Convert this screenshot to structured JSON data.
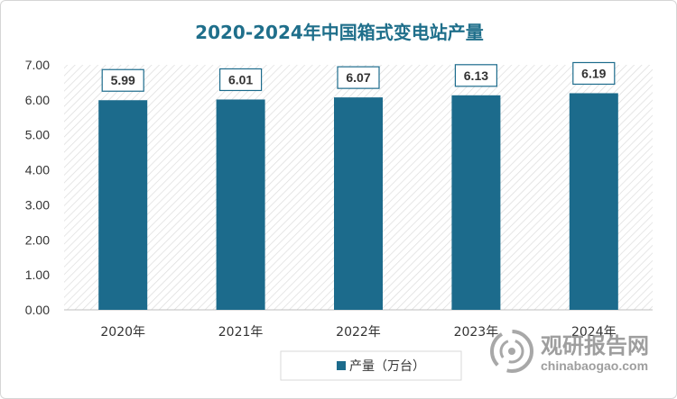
{
  "chart_data": {
    "type": "bar",
    "title": "2020-2024年中国箱式变电站产量",
    "categories": [
      "2020年",
      "2021年",
      "2022年",
      "2023年",
      "2024年"
    ],
    "series": [
      {
        "name": "产量（万台）",
        "values": [
          5.99,
          6.01,
          6.07,
          6.13,
          6.19
        ]
      }
    ],
    "data_labels": [
      "5.99",
      "6.01",
      "6.07",
      "6.13",
      "6.19"
    ],
    "y_ticks": [
      "0.00",
      "1.00",
      "2.00",
      "3.00",
      "4.00",
      "5.00",
      "6.00",
      "7.00"
    ],
    "ylim": [
      0,
      7
    ],
    "xlabel": "",
    "ylabel": "",
    "grid": false,
    "legend_position": "bottom",
    "colors": {
      "bar": "#1c6b8c",
      "title": "#1f6f8b",
      "plot_hatch": "#d9d9d9"
    }
  },
  "watermark": {
    "name": "观研报告网",
    "url": "chinabaogao.com"
  }
}
